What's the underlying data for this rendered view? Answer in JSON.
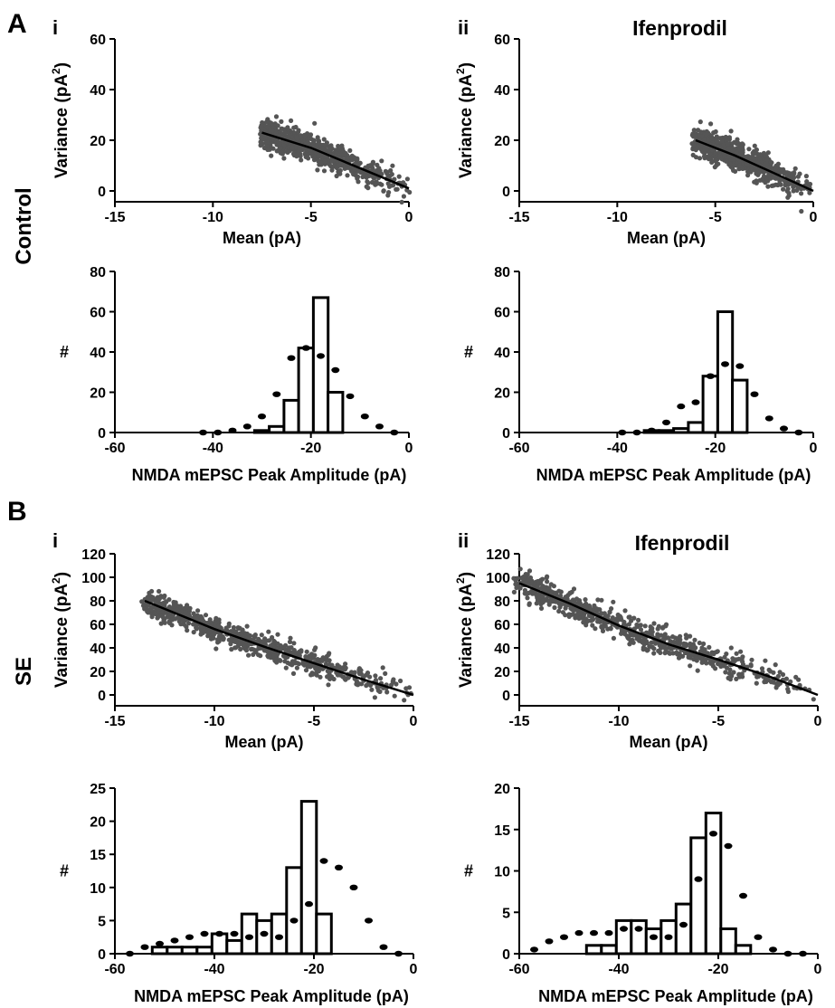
{
  "panel_labels": {
    "A": "A",
    "B": "B",
    "control": "Control",
    "se": "SE"
  },
  "chart_data": [
    {
      "id": "A-i-scatter",
      "type": "scatter",
      "sublabel": "i",
      "title": "",
      "xlabel": "Mean (pA)",
      "ylabel": "Variance (pA²)",
      "xlim": [
        -15,
        0
      ],
      "ylim": [
        0,
        60
      ],
      "xticks": [
        "-15",
        "-10",
        "-5",
        "0"
      ],
      "yticks": [
        "0",
        "20",
        "40",
        "60"
      ],
      "cloud": {
        "x_range": [
          -7.5,
          0.5
        ],
        "fit_start": [
          -7.5,
          23
        ],
        "fit_end": [
          0,
          1
        ]
      },
      "fit_line": {
        "x": [
          -7.5,
          -5,
          -2.5,
          0
        ],
        "y": [
          23,
          17,
          9,
          1
        ]
      }
    },
    {
      "id": "A-ii-scatter",
      "type": "scatter",
      "sublabel": "ii",
      "title": "Ifenprodil",
      "xlabel": "Mean (pA)",
      "ylabel": "Variance (pA²)",
      "xlim": [
        -15,
        0
      ],
      "ylim": [
        0,
        60
      ],
      "xticks": [
        "-15",
        "-10",
        "-5",
        "0"
      ],
      "yticks": [
        "0",
        "20",
        "40",
        "60"
      ],
      "fit_line": {
        "x": [
          -6,
          -4,
          -2,
          0
        ],
        "y": [
          20,
          14,
          7,
          0
        ]
      }
    },
    {
      "id": "A-i-hist",
      "type": "bar",
      "title": "",
      "xlabel": "NMDA mEPSC Peak Amplitude (pA)",
      "ylabel": "#",
      "xlim": [
        -60,
        0
      ],
      "ylim": [
        0,
        80
      ],
      "xticks": [
        "-60",
        "-40",
        "-20",
        "0"
      ],
      "yticks": [
        "0",
        "20",
        "40",
        "60",
        "80"
      ],
      "bin_width": 3,
      "bins": [
        {
          "x": -30,
          "value": 1
        },
        {
          "x": -27,
          "value": 3
        },
        {
          "x": -24,
          "value": 16
        },
        {
          "x": -21,
          "value": 42
        },
        {
          "x": -18,
          "value": 67
        },
        {
          "x": -15,
          "value": 20
        }
      ],
      "dots": {
        "x": [
          -42,
          -39,
          -36,
          -33,
          -30,
          -27,
          -24,
          -21,
          -18,
          -15,
          -12,
          -9,
          -6,
          -3
        ],
        "y": [
          0,
          0,
          1,
          3,
          8,
          19,
          37,
          42,
          38,
          31,
          18,
          8,
          3,
          0
        ]
      }
    },
    {
      "id": "A-ii-hist",
      "type": "bar",
      "title": "",
      "xlabel": "NMDA mEPSC Peak Amplitude (pA)",
      "ylabel": "#",
      "xlim": [
        -60,
        0
      ],
      "ylim": [
        0,
        80
      ],
      "xticks": [
        "-60",
        "-40",
        "-20",
        "0"
      ],
      "yticks": [
        "0",
        "20",
        "40",
        "60",
        "80"
      ],
      "bin_width": 3,
      "bins": [
        {
          "x": -33,
          "value": 1
        },
        {
          "x": -30,
          "value": 1
        },
        {
          "x": -27,
          "value": 2
        },
        {
          "x": -24,
          "value": 5
        },
        {
          "x": -21,
          "value": 28
        },
        {
          "x": -18,
          "value": 60
        },
        {
          "x": -15,
          "value": 26
        }
      ],
      "dots": {
        "x": [
          -39,
          -36,
          -33,
          -30,
          -27,
          -24,
          -21,
          -18,
          -15,
          -12,
          -9,
          -6,
          -3
        ],
        "y": [
          0,
          0,
          1,
          5,
          13,
          15,
          28,
          34,
          33,
          19,
          7,
          2,
          0
        ]
      }
    },
    {
      "id": "B-i-scatter",
      "type": "scatter",
      "sublabel": "i",
      "title": "",
      "xlabel": "Mean (pA)",
      "ylabel": "Variance (pA²)",
      "xlim": [
        -15,
        0
      ],
      "ylim": [
        0,
        120
      ],
      "xticks": [
        "-15",
        "-10",
        "-5",
        "0"
      ],
      "yticks": [
        "0",
        "20",
        "40",
        "60",
        "80",
        "100",
        "120"
      ],
      "fit_line": {
        "x": [
          -13.5,
          -10,
          -7.5,
          -5,
          -2.5,
          0
        ],
        "y": [
          80,
          56,
          41,
          27,
          13,
          0
        ]
      }
    },
    {
      "id": "B-ii-scatter",
      "type": "scatter",
      "sublabel": "ii",
      "title": "Ifenprodil",
      "xlabel": "Mean (pA)",
      "ylabel": "Variance (pA²)",
      "xlim": [
        -15,
        0
      ],
      "ylim": [
        0,
        120
      ],
      "xticks": [
        "-15",
        "-10",
        "-5",
        "0"
      ],
      "yticks": [
        "0",
        "20",
        "40",
        "60",
        "80",
        "100",
        "120"
      ],
      "fit_line": {
        "x": [
          -15,
          -12.5,
          -10,
          -7.5,
          -5,
          -2.5,
          0
        ],
        "y": [
          95,
          78,
          59,
          43,
          30,
          16,
          0
        ]
      }
    },
    {
      "id": "B-i-hist",
      "type": "bar",
      "title": "",
      "xlabel": "NMDA mEPSC Peak Amplitude (pA)",
      "ylabel": "#",
      "xlim": [
        -60,
        0
      ],
      "ylim": [
        0,
        25
      ],
      "xticks": [
        "-60",
        "-40",
        "-20",
        "0"
      ],
      "yticks": [
        "0",
        "5",
        "10",
        "15",
        "20",
        "25"
      ],
      "bin_width": 3,
      "bins": [
        {
          "x": -51,
          "value": 1
        },
        {
          "x": -48,
          "value": 1
        },
        {
          "x": -45,
          "value": 1
        },
        {
          "x": -42,
          "value": 1
        },
        {
          "x": -39,
          "value": 3
        },
        {
          "x": -36,
          "value": 2
        },
        {
          "x": -33,
          "value": 6
        },
        {
          "x": -30,
          "value": 5
        },
        {
          "x": -27,
          "value": 6
        },
        {
          "x": -24,
          "value": 13
        },
        {
          "x": -21,
          "value": 23
        },
        {
          "x": -18,
          "value": 6
        }
      ],
      "dots": {
        "x": [
          -57,
          -54,
          -51,
          -48,
          -45,
          -42,
          -39,
          -36,
          -33,
          -30,
          -27,
          -24,
          -21,
          -18,
          -15,
          -12,
          -9,
          -6,
          -3
        ],
        "y": [
          0,
          1,
          1.5,
          2,
          2.5,
          3,
          3,
          3,
          2.5,
          3,
          2.5,
          5,
          7.5,
          14,
          13,
          10,
          5,
          1,
          0
        ]
      }
    },
    {
      "id": "B-ii-hist",
      "type": "bar",
      "title": "",
      "xlabel": "NMDA mEPSC Peak Amplitude (pA)",
      "ylabel": "#",
      "xlim": [
        -60,
        0
      ],
      "ylim": [
        0,
        20
      ],
      "xticks": [
        "-60",
        "-40",
        "-20",
        "0"
      ],
      "yticks": [
        "0",
        "5",
        "10",
        "15",
        "20"
      ],
      "bin_width": 3,
      "bins": [
        {
          "x": -45,
          "value": 1
        },
        {
          "x": -42,
          "value": 1
        },
        {
          "x": -39,
          "value": 4
        },
        {
          "x": -36,
          "value": 4
        },
        {
          "x": -33,
          "value": 3
        },
        {
          "x": -30,
          "value": 4
        },
        {
          "x": -27,
          "value": 6
        },
        {
          "x": -24,
          "value": 14
        },
        {
          "x": -21,
          "value": 17
        },
        {
          "x": -18,
          "value": 3
        },
        {
          "x": -15,
          "value": 1
        }
      ],
      "dots": {
        "x": [
          -57,
          -54,
          -51,
          -48,
          -45,
          -42,
          -39,
          -36,
          -33,
          -30,
          -27,
          -24,
          -21,
          -18,
          -15,
          -12,
          -9,
          -6,
          -3
        ],
        "y": [
          0.5,
          1.5,
          2,
          2.5,
          2.5,
          2.5,
          3,
          3,
          2,
          2,
          3.5,
          9,
          14.5,
          13,
          7,
          2,
          0.5,
          0,
          0
        ]
      }
    }
  ]
}
